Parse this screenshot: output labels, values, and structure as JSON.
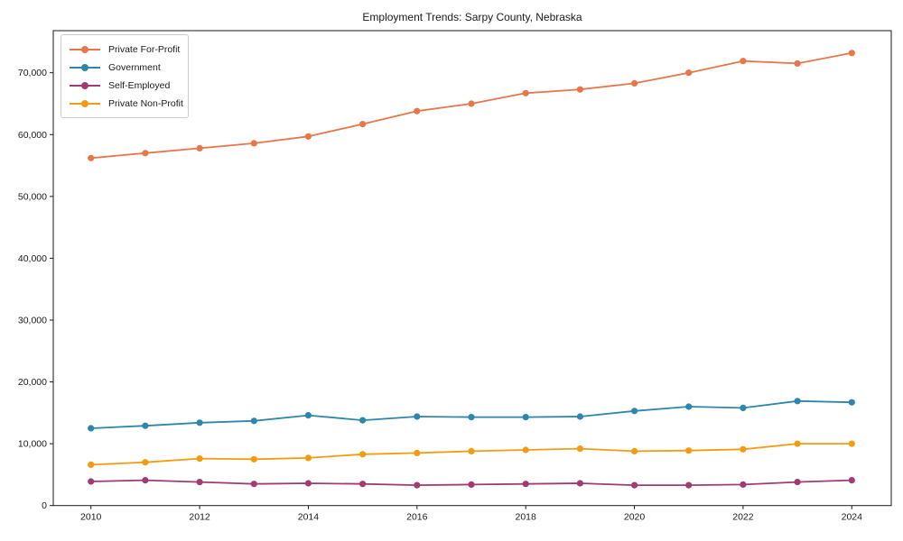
{
  "chart_data": {
    "type": "line",
    "title": "Employment Trends: Sarpy County, Nebraska",
    "x": [
      2010,
      2011,
      2012,
      2013,
      2014,
      2015,
      2016,
      2017,
      2018,
      2019,
      2020,
      2021,
      2022,
      2023,
      2024
    ],
    "x_tick_labels": [
      "2010",
      "2012",
      "2014",
      "2016",
      "2018",
      "2020",
      "2022",
      "2024"
    ],
    "x_tick_values": [
      2010,
      2012,
      2014,
      2016,
      2018,
      2020,
      2022,
      2024
    ],
    "y_tick_labels": [
      "0",
      "10,000",
      "20,000",
      "30,000",
      "40,000",
      "50,000",
      "60,000",
      "70,000"
    ],
    "y_tick_values": [
      0,
      10000,
      20000,
      30000,
      40000,
      50000,
      60000,
      70000
    ],
    "xlim": [
      2009.3,
      2024.7
    ],
    "ylim": [
      0,
      76800
    ],
    "grid": false,
    "legend_position": "upper-left",
    "series": [
      {
        "name": "Private For-Profit",
        "color": "#E8764B",
        "values": [
          56200,
          57000,
          57800,
          58600,
          59700,
          61700,
          63800,
          65000,
          66700,
          67300,
          68300,
          70000,
          71900,
          71500,
          73200
        ]
      },
      {
        "name": "Government",
        "color": "#2E86AB",
        "values": [
          12500,
          12900,
          13400,
          13700,
          14600,
          13800,
          14400,
          14300,
          14300,
          14400,
          15300,
          16000,
          15800,
          16900,
          16700
        ]
      },
      {
        "name": "Self-Employed",
        "color": "#A23B72",
        "values": [
          3900,
          4100,
          3800,
          3500,
          3600,
          3500,
          3300,
          3400,
          3500,
          3600,
          3300,
          3300,
          3400,
          3800,
          4100
        ]
      },
      {
        "name": "Private Non-Profit",
        "color": "#F39C12",
        "values": [
          6600,
          7000,
          7600,
          7500,
          7700,
          8300,
          8500,
          8800,
          9000,
          9200,
          8800,
          8900,
          9100,
          10000,
          10000
        ]
      }
    ]
  }
}
